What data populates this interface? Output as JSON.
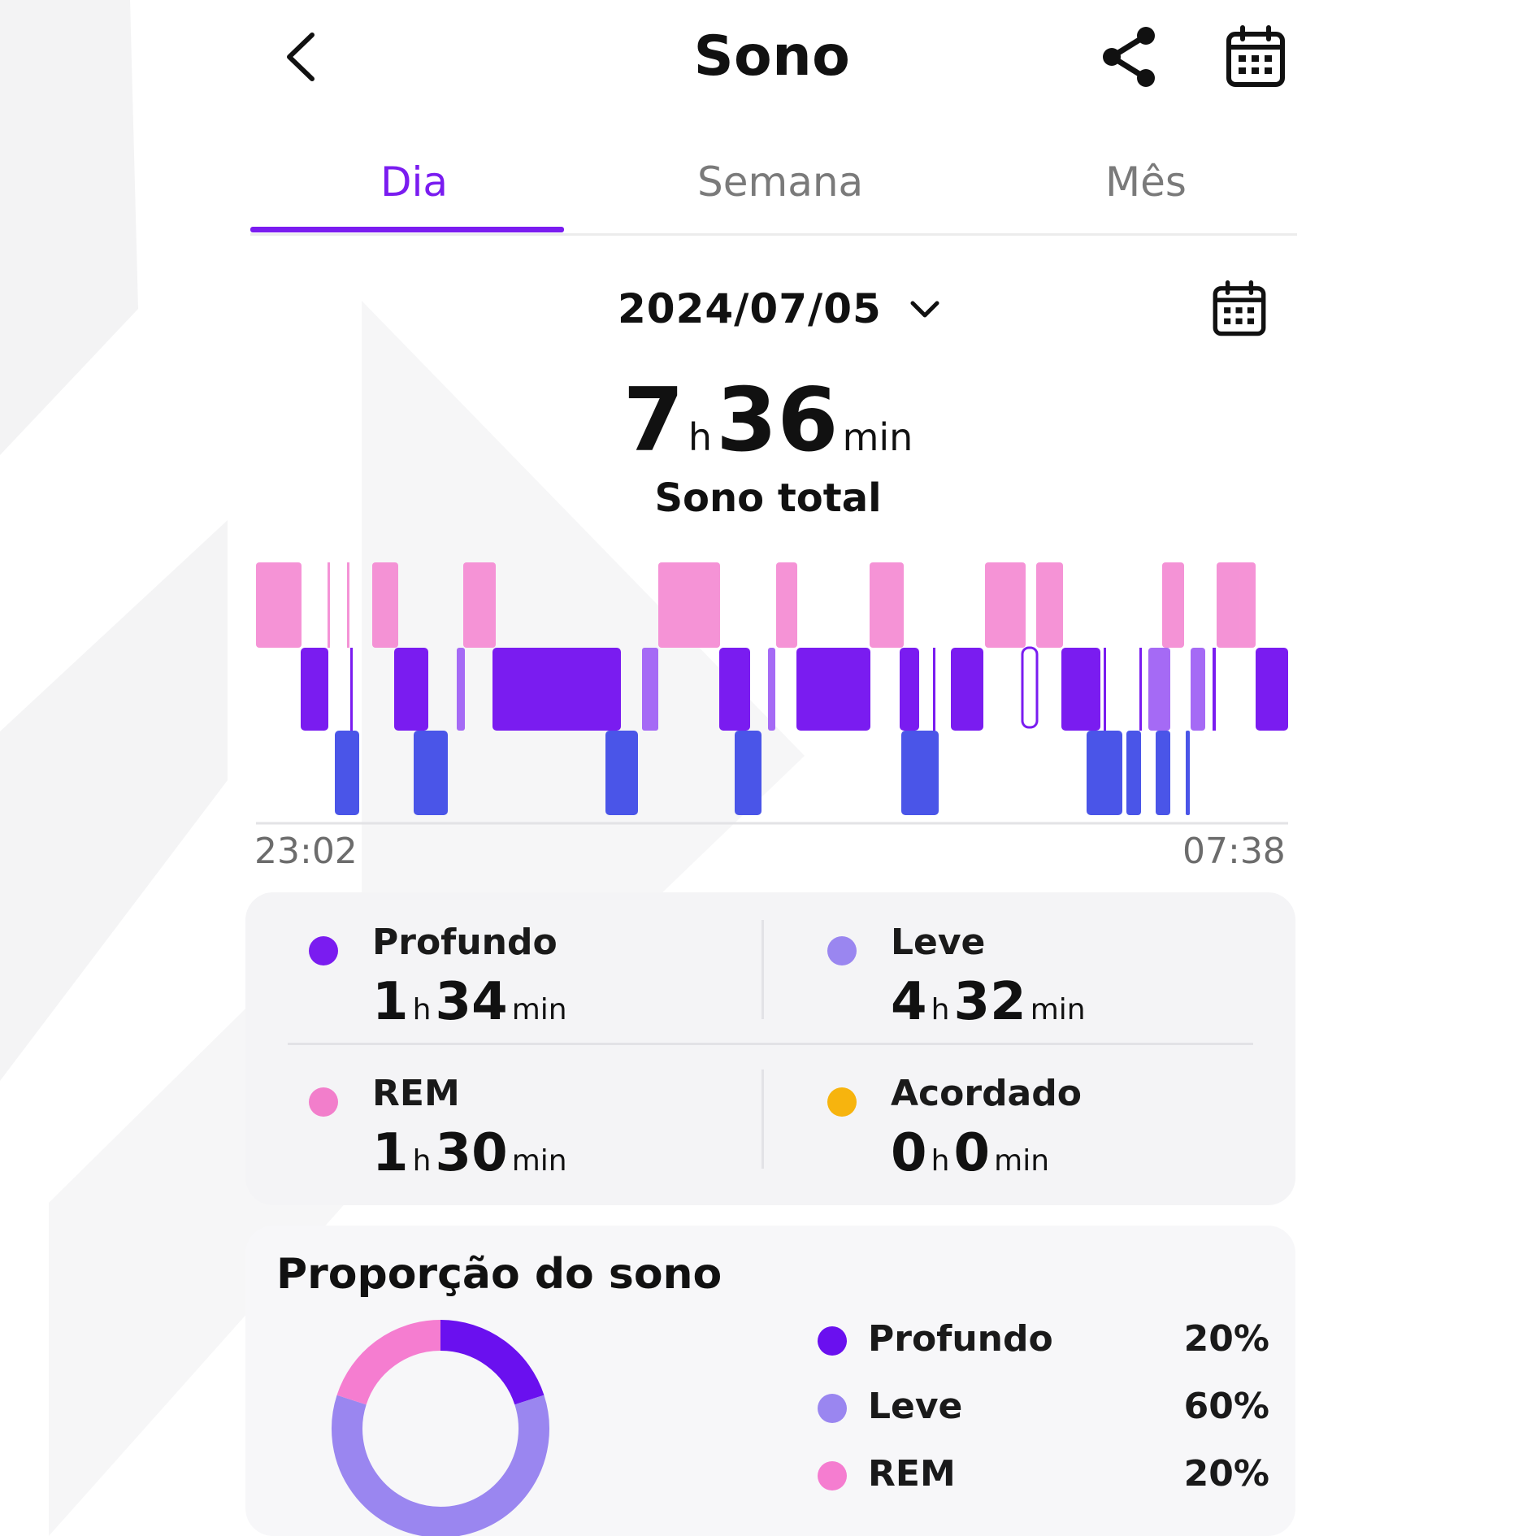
{
  "header": {
    "title": "Sono",
    "back_icon": "chevron-left-icon",
    "share_icon": "share-icon",
    "calendar_icon": "calendar-icon"
  },
  "tabs": [
    {
      "label": "Dia",
      "active": true
    },
    {
      "label": "Semana",
      "active": false
    },
    {
      "label": "Mês",
      "active": false
    }
  ],
  "date": {
    "value": "2024/07/05",
    "dropdown_icon": "chevron-down-icon"
  },
  "total": {
    "hours": "7",
    "hours_unit": "h",
    "minutes": "36",
    "minutes_unit": "min",
    "label": "Sono total"
  },
  "colors": {
    "accent": "#7a1cf0",
    "deep": "#7a1cf0",
    "light": "#9a86f0",
    "rem": "#f27ecb",
    "awake": "#f7b40e",
    "deep_sleep_bar": "#4a55e8"
  },
  "hypnogram": {
    "start_time": "23:02",
    "end_time": "07:38"
  },
  "stats": [
    {
      "name": "Profundo",
      "h": "1",
      "h_unit": "h",
      "m": "34",
      "m_unit": "min",
      "color": "#7a1cf0"
    },
    {
      "name": "Leve",
      "h": "4",
      "h_unit": "h",
      "m": "32",
      "m_unit": "min",
      "color": "#9a86f0"
    },
    {
      "name": "REM",
      "h": "1",
      "h_unit": "h",
      "m": "30",
      "m_unit": "min",
      "color": "#f27ecb"
    },
    {
      "name": "Acordado",
      "h": "0",
      "h_unit": "h",
      "m": "0",
      "m_unit": "min",
      "color": "#f7b40e"
    }
  ],
  "proportion": {
    "title": "Proporção do sono",
    "items": [
      {
        "name": "Profundo",
        "pct": "20%",
        "value": 20,
        "color": "#6a10ef"
      },
      {
        "name": "Leve",
        "pct": "60%",
        "value": 60,
        "color": "#9a86f0"
      },
      {
        "name": "REM",
        "pct": "20%",
        "value": 20,
        "color": "#f57dd0"
      }
    ]
  }
}
